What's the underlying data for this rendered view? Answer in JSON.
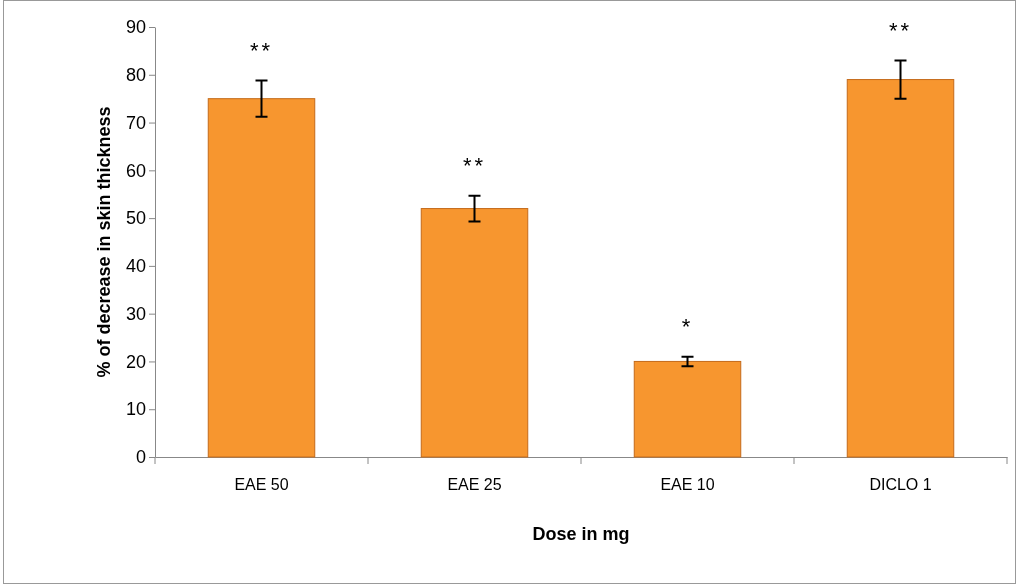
{
  "chart_data": {
    "type": "bar",
    "xlabel": "Dose in mg",
    "ylabel": "% of decrease in skin thickness",
    "categories": [
      "EAE 50",
      "EAE 25",
      "EAE 10",
      "DICLO 1"
    ],
    "values": [
      75,
      52,
      20,
      79
    ],
    "errors": [
      3.8,
      2.7,
      1,
      4
    ],
    "color": "#f7962f",
    "ylim": [
      0,
      90
    ],
    "yticks": [
      0,
      10,
      20,
      30,
      40,
      50,
      60,
      70,
      80,
      90
    ],
    "annotations": [
      "**",
      "**",
      "*",
      "**"
    ]
  }
}
